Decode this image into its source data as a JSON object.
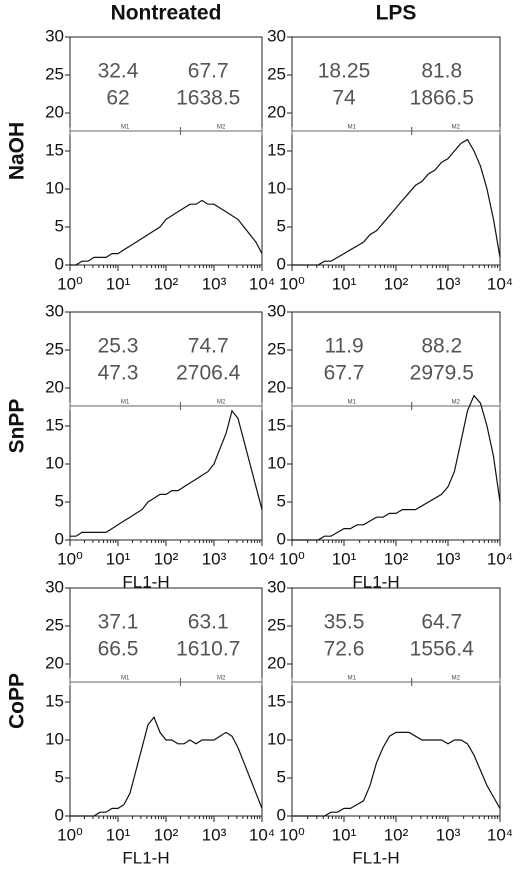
{
  "columns": [
    "Nontreated",
    "LPS"
  ],
  "rows": [
    "NaOH",
    "SnPP",
    "CoPP"
  ],
  "chart_data": [
    {
      "type": "line",
      "log_x": true,
      "color": "#111111",
      "xlim": [
        1,
        10000
      ],
      "ylim": [
        0,
        30
      ],
      "xticks": [
        {
          "value": 1,
          "label": "10⁰"
        },
        {
          "value": 10,
          "label": "10¹"
        },
        {
          "value": 100,
          "label": "10²"
        },
        {
          "value": 1000,
          "label": "10³"
        },
        {
          "value": 10000,
          "label": "10⁴"
        }
      ],
      "yticks": [
        0,
        5,
        10,
        15,
        20,
        25,
        30
      ],
      "stats": [
        [
          32.4,
          67.7
        ],
        [
          62,
          1638.5
        ]
      ],
      "markers": [
        {
          "label": "M1",
          "range": [
            1,
            200
          ]
        },
        {
          "label": "M2",
          "range": [
            200,
            10000
          ]
        }
      ],
      "x": [
        1,
        1.33,
        1.78,
        2.37,
        3.16,
        4.22,
        5.62,
        7.5,
        10,
        13.3,
        17.8,
        23.7,
        31.6,
        42.2,
        56.2,
        75,
        100,
        133,
        178,
        237,
        316,
        422,
        562,
        750,
        1000,
        1330,
        1780,
        2370,
        3160,
        4220,
        5620,
        7500,
        10000
      ],
      "values": [
        0,
        0,
        0.5,
        0.5,
        1,
        1,
        1,
        1.5,
        1.5,
        2,
        2.5,
        3,
        3.5,
        4,
        4.5,
        5,
        6,
        6.5,
        7,
        7.5,
        8,
        8,
        8.5,
        8,
        8,
        7.5,
        7,
        6.5,
        6,
        5,
        4,
        3,
        1.5
      ]
    },
    {
      "type": "line",
      "log_x": true,
      "color": "#111111",
      "xlim": [
        1,
        10000
      ],
      "ylim": [
        0,
        30
      ],
      "xticks": [
        {
          "value": 1,
          "label": "10⁰"
        },
        {
          "value": 10,
          "label": "10¹"
        },
        {
          "value": 100,
          "label": "10²"
        },
        {
          "value": 1000,
          "label": "10³"
        },
        {
          "value": 10000,
          "label": "10⁴"
        }
      ],
      "yticks": [
        0,
        5,
        10,
        15,
        20,
        25,
        30
      ],
      "stats": [
        [
          18.25,
          81.8
        ],
        [
          74,
          1866.5
        ]
      ],
      "markers": [
        {
          "label": "M1",
          "range": [
            1,
            200
          ]
        },
        {
          "label": "M2",
          "range": [
            200,
            10000
          ]
        }
      ],
      "x": [
        1,
        1.33,
        1.78,
        2.37,
        3.16,
        4.22,
        5.62,
        7.5,
        10,
        13.3,
        17.8,
        23.7,
        31.6,
        42.2,
        56.2,
        75,
        100,
        133,
        178,
        237,
        316,
        422,
        562,
        750,
        1000,
        1330,
        1780,
        2370,
        3160,
        4220,
        5620,
        7500,
        10000
      ],
      "values": [
        0,
        0,
        0,
        0,
        0,
        0.5,
        0.5,
        1,
        1.5,
        2,
        2.5,
        3,
        4,
        4.5,
        5.5,
        6.5,
        7.5,
        8.5,
        9.5,
        10.5,
        11,
        12,
        12.5,
        13.5,
        14,
        15,
        16,
        16.5,
        15,
        13,
        10,
        6,
        1
      ]
    },
    {
      "type": "line",
      "log_x": true,
      "color": "#111111",
      "xlim": [
        1,
        10000
      ],
      "ylim": [
        0,
        30
      ],
      "xticks": [
        {
          "value": 1,
          "label": "10⁰"
        },
        {
          "value": 10,
          "label": "10¹"
        },
        {
          "value": 100,
          "label": "10²"
        },
        {
          "value": 1000,
          "label": "10³"
        },
        {
          "value": 10000,
          "label": "10⁴"
        }
      ],
      "yticks": [
        0,
        5,
        10,
        15,
        20,
        25,
        30
      ],
      "xlabel": "FL1-H",
      "stats": [
        [
          25.3,
          74.7
        ],
        [
          47.3,
          2706.4
        ]
      ],
      "markers": [
        {
          "label": "M1",
          "range": [
            1,
            200
          ]
        },
        {
          "label": "M2",
          "range": [
            200,
            10000
          ]
        }
      ],
      "x": [
        1,
        1.33,
        1.78,
        2.37,
        3.16,
        4.22,
        5.62,
        7.5,
        10,
        13.3,
        17.8,
        23.7,
        31.6,
        42.2,
        56.2,
        75,
        100,
        133,
        178,
        237,
        316,
        422,
        562,
        750,
        1000,
        1330,
        1780,
        2370,
        3160,
        4220,
        5620,
        7500,
        10000
      ],
      "values": [
        0.5,
        0.5,
        1,
        1,
        1,
        1,
        1,
        1.5,
        2,
        2.5,
        3,
        3.5,
        4,
        5,
        5.5,
        6,
        6,
        6.5,
        6.5,
        7,
        7.5,
        8,
        8.5,
        9,
        10,
        12,
        14,
        17,
        16,
        13,
        10,
        7,
        4
      ]
    },
    {
      "type": "line",
      "log_x": true,
      "color": "#111111",
      "xlim": [
        1,
        10000
      ],
      "ylim": [
        0,
        30
      ],
      "xticks": [
        {
          "value": 1,
          "label": "10⁰"
        },
        {
          "value": 10,
          "label": "10¹"
        },
        {
          "value": 100,
          "label": "10²"
        },
        {
          "value": 1000,
          "label": "10³"
        },
        {
          "value": 10000,
          "label": "10⁴"
        }
      ],
      "yticks": [
        0,
        5,
        10,
        15,
        20,
        25,
        30
      ],
      "xlabel": "FL1-H",
      "stats": [
        [
          11.9,
          88.2
        ],
        [
          67.7,
          2979.5
        ]
      ],
      "markers": [
        {
          "label": "M1",
          "range": [
            1,
            200
          ]
        },
        {
          "label": "M2",
          "range": [
            200,
            10000
          ]
        }
      ],
      "x": [
        1,
        1.33,
        1.78,
        2.37,
        3.16,
        4.22,
        5.62,
        7.5,
        10,
        13.3,
        17.8,
        23.7,
        31.6,
        42.2,
        56.2,
        75,
        100,
        133,
        178,
        237,
        316,
        422,
        562,
        750,
        1000,
        1330,
        1780,
        2370,
        3160,
        4220,
        5620,
        7500,
        10000
      ],
      "values": [
        0,
        0,
        0,
        0,
        0,
        0.5,
        0.5,
        1,
        1.5,
        1.5,
        2,
        2,
        2.5,
        3,
        3,
        3.5,
        3.5,
        4,
        4,
        4,
        4.5,
        5,
        5.5,
        6,
        7,
        9,
        13,
        17,
        19,
        18,
        15,
        11,
        5
      ]
    },
    {
      "type": "line",
      "log_x": true,
      "color": "#111111",
      "xlim": [
        1,
        10000
      ],
      "ylim": [
        0,
        30
      ],
      "xticks": [
        {
          "value": 1,
          "label": "10⁰"
        },
        {
          "value": 10,
          "label": "10¹"
        },
        {
          "value": 100,
          "label": "10²"
        },
        {
          "value": 1000,
          "label": "10³"
        },
        {
          "value": 10000,
          "label": "10⁴"
        }
      ],
      "yticks": [
        0,
        5,
        10,
        15,
        20,
        25,
        30
      ],
      "xlabel": "FL1-H",
      "stats": [
        [
          37.1,
          63.1
        ],
        [
          66.5,
          1610.7
        ]
      ],
      "markers": [
        {
          "label": "M1",
          "range": [
            1,
            200
          ]
        },
        {
          "label": "M2",
          "range": [
            200,
            10000
          ]
        }
      ],
      "x": [
        1,
        1.33,
        1.78,
        2.37,
        3.16,
        4.22,
        5.62,
        7.5,
        10,
        13.3,
        17.8,
        23.7,
        31.6,
        42.2,
        56.2,
        75,
        100,
        133,
        178,
        237,
        316,
        422,
        562,
        750,
        1000,
        1330,
        1780,
        2370,
        3160,
        4220,
        5620,
        7500,
        10000
      ],
      "values": [
        0,
        0,
        0,
        0,
        0,
        0.5,
        0.5,
        1,
        1,
        1.5,
        3,
        6,
        9,
        12,
        13,
        11,
        10,
        10,
        9.5,
        9.5,
        10,
        9.5,
        10,
        10,
        10,
        10.5,
        11,
        10.5,
        9,
        7,
        5,
        3,
        1
      ]
    },
    {
      "type": "line",
      "log_x": true,
      "color": "#111111",
      "xlim": [
        1,
        10000
      ],
      "ylim": [
        0,
        30
      ],
      "xticks": [
        {
          "value": 1,
          "label": "10⁰"
        },
        {
          "value": 10,
          "label": "10¹"
        },
        {
          "value": 100,
          "label": "10²"
        },
        {
          "value": 1000,
          "label": "10³"
        },
        {
          "value": 10000,
          "label": "10⁴"
        }
      ],
      "yticks": [
        0,
        5,
        10,
        15,
        20,
        25,
        30
      ],
      "xlabel": "FL1-H",
      "stats": [
        [
          35.5,
          64.7
        ],
        [
          72.6,
          1556.4
        ]
      ],
      "markers": [
        {
          "label": "M1",
          "range": [
            1,
            200
          ]
        },
        {
          "label": "M2",
          "range": [
            200,
            10000
          ]
        }
      ],
      "x": [
        1,
        1.33,
        1.78,
        2.37,
        3.16,
        4.22,
        5.62,
        7.5,
        10,
        13.3,
        17.8,
        23.7,
        31.6,
        42.2,
        56.2,
        75,
        100,
        133,
        178,
        237,
        316,
        422,
        562,
        750,
        1000,
        1330,
        1780,
        2370,
        3160,
        4220,
        5620,
        7500,
        10000
      ],
      "values": [
        0,
        0,
        0,
        0,
        0,
        0,
        0.5,
        0.5,
        1,
        1,
        1.5,
        2,
        4,
        7,
        9,
        10.5,
        11,
        11,
        11,
        10.5,
        10,
        10,
        10,
        10,
        9.5,
        10,
        10,
        9.5,
        8,
        6,
        4,
        2.5,
        1
      ]
    }
  ]
}
